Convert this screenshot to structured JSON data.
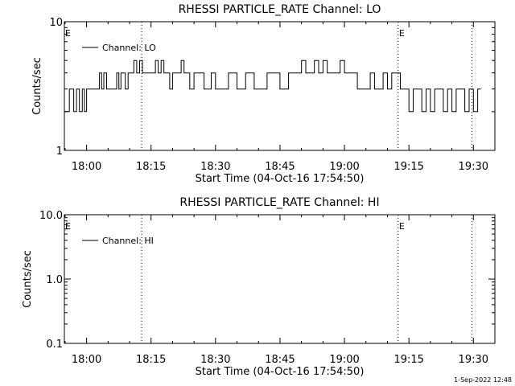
{
  "chart_data": [
    {
      "type": "line",
      "title": "RHESSI PARTICLE_RATE Channel: LO",
      "xlabel": "Start Time (04-Oct-16 17:54:50)",
      "ylabel": "Counts/sec",
      "y_scale": "log",
      "ylim": [
        1,
        10
      ],
      "y_ticks": [
        "1",
        "10"
      ],
      "xlim": [
        "17:54:50",
        "19:35:00"
      ],
      "x_ticks": [
        "18:00",
        "18:15",
        "18:30",
        "18:45",
        "19:00",
        "19:15",
        "19:30"
      ],
      "grid": false,
      "legend_position": "top-left",
      "series": [
        {
          "name": "Channel: LO",
          "color": "#000000",
          "x": [
            "17:54:50",
            "17:56:00",
            "17:57:00",
            "17:57:40",
            "17:58:20",
            "17:59:00",
            "17:59:30",
            "18:00:00",
            "18:00:40",
            "18:02:00",
            "18:03:00",
            "18:03:30",
            "18:04:00",
            "18:04:40",
            "18:05:00",
            "18:06:00",
            "18:07:00",
            "18:07:30",
            "18:08:00",
            "18:08:40",
            "18:09:00",
            "18:09:40",
            "18:10:20",
            "18:11:00",
            "18:11:40",
            "18:12:20",
            "18:13:00",
            "18:14:00",
            "18:15:00",
            "18:16:00",
            "18:16:40",
            "18:17:20",
            "18:18:00",
            "18:18:40",
            "18:19:20",
            "18:20:00",
            "18:21:00",
            "18:22:00",
            "18:22:40",
            "18:23:20",
            "18:24:00",
            "18:25:00",
            "18:26:00",
            "18:26:40",
            "18:27:20",
            "18:28:00",
            "18:29:00",
            "18:30:00",
            "18:31:00",
            "18:32:00",
            "18:33:00",
            "18:34:00",
            "18:35:00",
            "18:36:00",
            "18:37:00",
            "18:38:00",
            "18:39:00",
            "18:40:00",
            "18:41:00",
            "18:42:00",
            "18:43:00",
            "18:44:00",
            "18:45:00",
            "18:46:00",
            "18:47:00",
            "18:48:00",
            "18:49:00",
            "18:50:00",
            "18:51:00",
            "18:52:00",
            "18:53:00",
            "18:54:00",
            "18:55:00",
            "18:56:00",
            "18:57:00",
            "18:58:00",
            "18:59:00",
            "19:00:00",
            "19:01:00",
            "19:02:00",
            "19:03:00",
            "19:04:00",
            "19:05:00",
            "19:06:00",
            "19:07:00",
            "19:08:00",
            "19:09:00",
            "19:10:00",
            "19:11:00",
            "19:12:00",
            "19:13:00",
            "19:14:00",
            "19:15:00",
            "19:16:00",
            "19:17:00",
            "19:18:00",
            "19:19:00",
            "19:20:00",
            "19:21:00",
            "19:22:00",
            "19:23:00",
            "19:24:00",
            "19:25:00",
            "19:26:00",
            "19:27:00",
            "19:28:00",
            "19:29:00",
            "19:30:00",
            "19:31:00"
          ],
          "values": [
            2,
            3,
            2,
            3,
            2,
            3,
            2,
            3,
            3,
            3,
            4,
            3,
            4,
            3,
            3,
            3,
            4,
            3,
            4,
            4,
            3,
            4,
            4,
            5,
            4,
            5,
            4,
            4,
            4,
            5,
            4,
            5,
            4,
            4,
            3,
            4,
            4,
            5,
            4,
            4,
            3,
            4,
            4,
            4,
            3,
            3,
            4,
            3,
            3,
            3,
            4,
            4,
            3,
            3,
            4,
            4,
            3,
            3,
            3,
            4,
            4,
            4,
            3,
            3,
            4,
            4,
            4,
            5,
            4,
            4,
            5,
            4,
            5,
            4,
            4,
            4,
            5,
            4,
            4,
            4,
            3,
            3,
            3,
            4,
            3,
            3,
            4,
            3,
            4,
            4,
            3,
            3,
            2,
            3,
            3,
            2,
            3,
            2,
            3,
            3,
            2,
            3,
            2,
            3,
            3,
            2,
            3,
            2,
            3
          ]
        }
      ],
      "annotations": {
        "event_marker_label": "E",
        "vertical_lines": [
          "18:12:50",
          "19:12:30",
          "19:29:40"
        ],
        "e_markers": [
          "17:54:50",
          "19:12:30"
        ]
      }
    },
    {
      "type": "line",
      "title": "RHESSI PARTICLE_RATE Channel: HI",
      "xlabel": "Start Time (04-Oct-16 17:54:50)",
      "ylabel": "Counts/sec",
      "y_scale": "log",
      "ylim": [
        0.1,
        10
      ],
      "y_ticks": [
        "0.1",
        "1.0",
        "10.0"
      ],
      "xlim": [
        "17:54:50",
        "19:35:00"
      ],
      "x_ticks": [
        "18:00",
        "18:15",
        "18:30",
        "18:45",
        "19:00",
        "19:15",
        "19:30"
      ],
      "grid": false,
      "legend_position": "top-left",
      "series": [
        {
          "name": "Channel: HI",
          "color": "#000000",
          "x": [],
          "values": []
        }
      ],
      "annotations": {
        "event_marker_label": "E",
        "vertical_lines": [
          "18:12:50",
          "19:12:30",
          "19:29:40"
        ],
        "e_markers": [
          "17:54:50",
          "19:12:30"
        ]
      }
    }
  ],
  "footer": {
    "timestamp": "1-Sep-2022 12:48"
  }
}
